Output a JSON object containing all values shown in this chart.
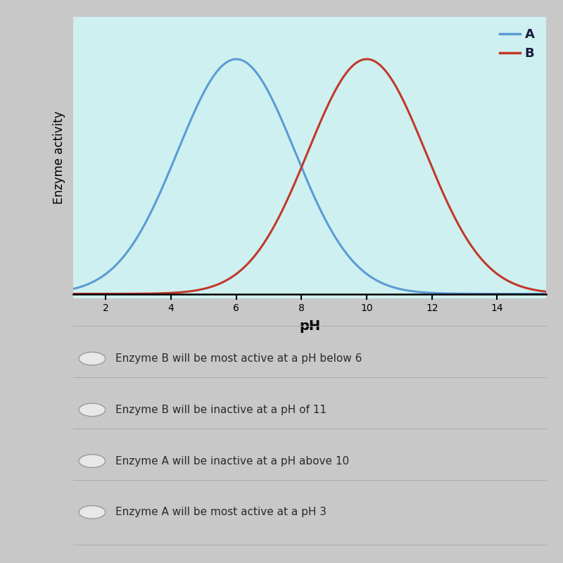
{
  "curve_A_mean": 6,
  "curve_A_std": 1.8,
  "curve_B_mean": 10,
  "curve_B_std": 1.8,
  "color_A": "#5b9bd5",
  "color_B": "#c0392b",
  "xlabel": "pH",
  "ylabel": "Enzyme activity",
  "x_ticks": [
    2,
    4,
    6,
    8,
    10,
    12,
    14
  ],
  "x_min": 1,
  "x_max": 15.5,
  "legend_A": "A",
  "legend_B": "B",
  "line_width": 2.2,
  "chart_bg": "#cff0f0",
  "fig_bg": "#c8c8c8",
  "options_bg": "#d8d8d8",
  "options": [
    "Enzyme B will be most active at a pH below 6",
    "Enzyme B will be inactive at a pH of 11",
    "Enzyme A will be inactive at a pH above 10",
    "Enzyme A will be most active at a pH 3"
  ]
}
